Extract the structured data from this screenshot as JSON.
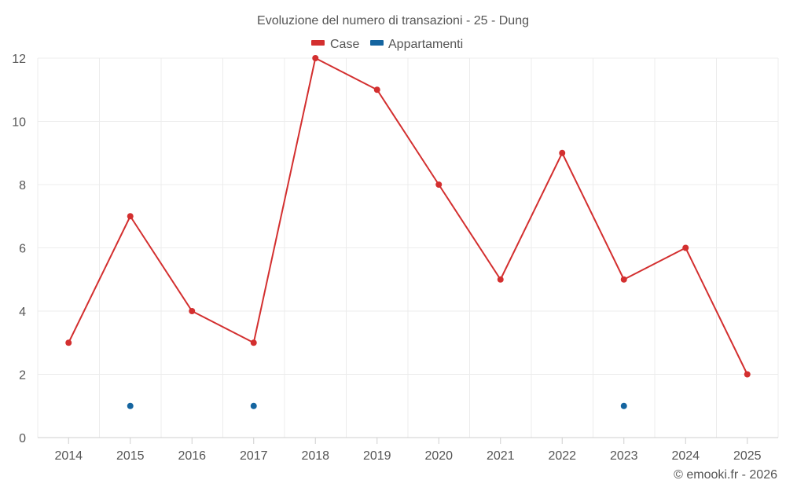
{
  "chart_data": {
    "type": "line",
    "title": "Evoluzione del numero di transazioni - 25 - Dung",
    "categories": [
      "2014",
      "2015",
      "2016",
      "2017",
      "2018",
      "2019",
      "2020",
      "2021",
      "2022",
      "2023",
      "2024",
      "2025"
    ],
    "series": [
      {
        "name": "Case",
        "color": "#d32f2f",
        "values": [
          3,
          7,
          4,
          3,
          12,
          11,
          8,
          5,
          9,
          5,
          6,
          2
        ]
      },
      {
        "name": "Appartamenti",
        "color": "#1565a0",
        "values": [
          null,
          1,
          null,
          1,
          null,
          null,
          null,
          null,
          null,
          1,
          null,
          null
        ]
      }
    ],
    "ylim": [
      0,
      12
    ],
    "yticks": [
      0,
      2,
      4,
      6,
      8,
      10,
      12
    ],
    "grid": true,
    "legend": "top-center",
    "credit": "© emooki.fr - 2026"
  }
}
